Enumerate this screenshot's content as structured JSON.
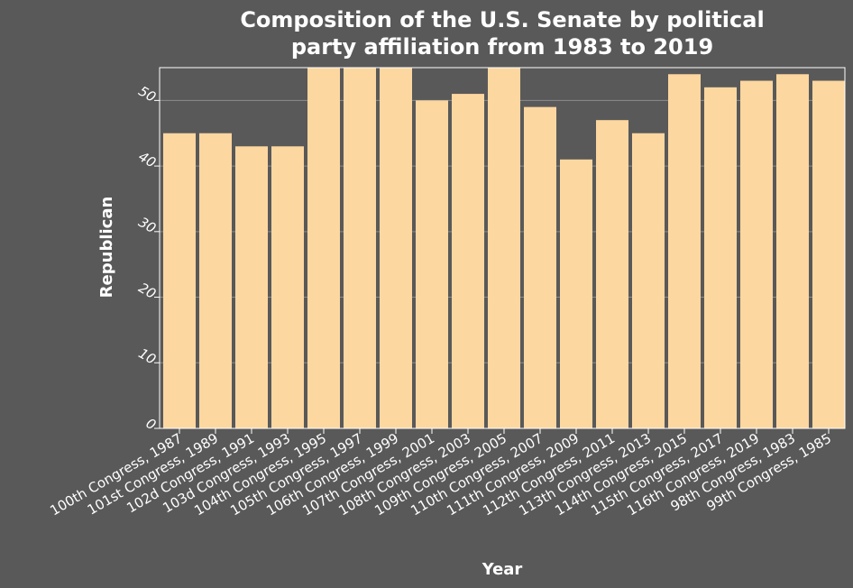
{
  "chart_data": {
    "type": "bar",
    "title_line1": "Composition of the U.S. Senate by political",
    "title_line2": "party affiliation from 1983 to 2019",
    "xlabel": "Year",
    "ylabel": "Republican",
    "categories": [
      "100th Congress, 1987",
      "101st Congress, 1989",
      "102d Congress, 1991",
      "103d Congress, 1993",
      "104th Congress, 1995",
      "105th Congress, 1997",
      "106th Congress, 1999",
      "107th Congress, 2001",
      "108th Congress, 2003",
      "109th Congress, 2005",
      "110th Congress, 2007",
      "111th Congress, 2009",
      "112th Congress, 2011",
      "113th Congress, 2013",
      "114th Congress, 2015",
      "115th Congress, 2017",
      "116th Congress, 2019",
      "98th Congress, 1983",
      "99th Congress, 1985"
    ],
    "values": [
      45,
      45,
      43,
      43,
      55,
      55,
      55,
      50,
      51,
      55,
      49,
      41,
      47,
      45,
      54,
      52,
      53,
      54,
      53
    ],
    "ylim": [
      0,
      55
    ],
    "yticks": [
      "0",
      "10",
      "20",
      "30",
      "40",
      "50"
    ],
    "grid": "y-major",
    "legend": "none",
    "colors": {
      "background": "#595959",
      "bar": "#fdd7a0",
      "text": "#ffffff",
      "grid": "#8c8c8c"
    }
  }
}
